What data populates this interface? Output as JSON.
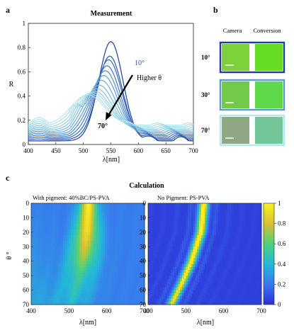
{
  "panels": {
    "a": "a",
    "b": "b",
    "c": "c"
  },
  "measurement": {
    "title": "Measurement",
    "ylabel": "R",
    "xlabel": "λ[nm]",
    "annotation_top": "10°",
    "annotation_mid": "Higher θ",
    "annotation_bottom": "70°",
    "yticks": [
      "0",
      "0.2",
      "0.4",
      "0.6",
      "0.8",
      "1"
    ],
    "xticks": [
      "400",
      "450",
      "500",
      "550",
      "600",
      "650",
      "700"
    ],
    "accent_dark": "#1f3d99",
    "accent_light": "#a8e3ec"
  },
  "chart_data": [
    {
      "type": "line",
      "xlim": [
        400,
        700
      ],
      "ylim": [
        0,
        1
      ],
      "grid": false,
      "series": [
        {
          "angle_deg": 10,
          "peak_nm": 550,
          "peak_R": 0.85,
          "color": "#1f3d99"
        },
        {
          "angle_deg": 15,
          "peak_nm": 548,
          "peak_R": 0.73,
          "color": "#2a54ad"
        },
        {
          "angle_deg": 20,
          "peak_nm": 546,
          "peak_R": 0.7,
          "color": "#3566b8"
        },
        {
          "angle_deg": 25,
          "peak_nm": 543,
          "peak_R": 0.65,
          "color": "#4178c2"
        },
        {
          "angle_deg": 30,
          "peak_nm": 540,
          "peak_R": 0.61,
          "color": "#4e8acb"
        },
        {
          "angle_deg": 35,
          "peak_nm": 537,
          "peak_R": 0.57,
          "color": "#5c9bd2"
        },
        {
          "angle_deg": 40,
          "peak_nm": 533,
          "peak_R": 0.53,
          "color": "#6aaad8"
        },
        {
          "angle_deg": 45,
          "peak_nm": 529,
          "peak_R": 0.49,
          "color": "#79b8dd"
        },
        {
          "angle_deg": 50,
          "peak_nm": 525,
          "peak_R": 0.46,
          "color": "#87c5e1"
        },
        {
          "angle_deg": 55,
          "peak_nm": 521,
          "peak_R": 0.44,
          "color": "#94d0e5"
        },
        {
          "angle_deg": 60,
          "peak_nm": 517,
          "peak_R": 0.43,
          "color": "#9fd9e8"
        },
        {
          "angle_deg": 65,
          "peak_nm": 512,
          "peak_R": 0.42,
          "color": "#a9e0ea"
        },
        {
          "angle_deg": 70,
          "peak_nm": 508,
          "peak_R": 0.41,
          "color": "#b4e6ed"
        }
      ]
    },
    {
      "type": "heatmap",
      "title": "With pigment: 40%BC/PS-PVA",
      "xlabel": "λ[nm]",
      "ylabel": "θ °",
      "xlim": [
        400,
        700
      ],
      "ylim": [
        0,
        70
      ],
      "xticks": [
        "400",
        "500",
        "600",
        "700"
      ],
      "yticks": [
        "0",
        "10",
        "20",
        "30",
        "40",
        "50",
        "60",
        "70"
      ],
      "peak_track": [
        {
          "theta": 0,
          "lambda_nm": 552,
          "R": 0.95
        },
        {
          "theta": 20,
          "lambda_nm": 547,
          "R": 0.88
        },
        {
          "theta": 35,
          "lambda_nm": 540,
          "R": 0.72
        },
        {
          "theta": 50,
          "lambda_nm": 528,
          "R": 0.5
        },
        {
          "theta": 70,
          "lambda_nm": 505,
          "R": 0.38
        }
      ]
    },
    {
      "type": "heatmap",
      "title": "No Pigment: PS-PVA",
      "xlabel": "λ[nm]",
      "xlim": [
        400,
        700
      ],
      "ylim": [
        0,
        70
      ],
      "xticks": [
        "400",
        "500",
        "600",
        "700"
      ],
      "yticks": [
        "0",
        "10",
        "20",
        "30",
        "40",
        "50",
        "60",
        "70"
      ],
      "peak_track": [
        {
          "theta": 0,
          "lambda_nm": 548,
          "R": 0.97
        },
        {
          "theta": 20,
          "lambda_nm": 540,
          "R": 0.95
        },
        {
          "theta": 40,
          "lambda_nm": 515,
          "R": 0.9
        },
        {
          "theta": 55,
          "lambda_nm": 490,
          "R": 0.85
        },
        {
          "theta": 70,
          "lambda_nm": 462,
          "R": 0.8
        }
      ]
    }
  ],
  "colorbar": {
    "ticks": [
      "0",
      "0.2",
      "0.4",
      "0.6",
      "0.8",
      "1"
    ],
    "range": [
      0,
      1
    ]
  },
  "conversion_panel": {
    "header_camera": "Camera",
    "header_conversion": "Conversion",
    "rows": [
      {
        "angle": "10°",
        "camera_color": "#7ed13a",
        "conversion_color": "#66dd22",
        "border": "#1f3d99"
      },
      {
        "angle": "30°",
        "camera_color": "#72c94a",
        "conversion_color": "#5fd84a",
        "border": "#5b9ad0"
      },
      {
        "angle": "70°",
        "camera_color": "#8fa883",
        "conversion_color": "#72c697",
        "border": "#b4e6ed"
      }
    ]
  },
  "calculation": {
    "title": "Calculation"
  }
}
